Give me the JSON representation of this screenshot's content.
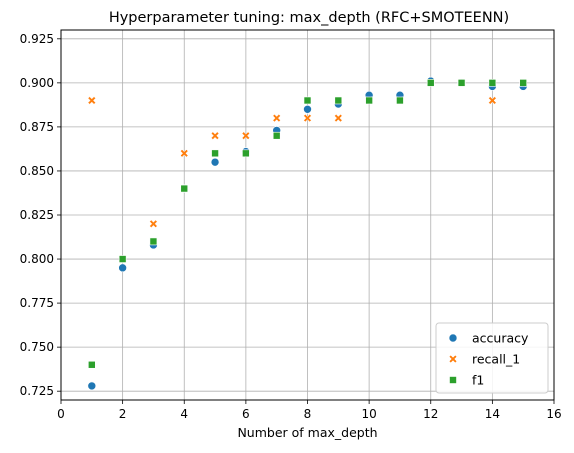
{
  "chart_data": {
    "type": "scatter",
    "title": "Hyperparameter tuning: max_depth (RFC+SMOTEENN)",
    "xlabel": "Number of max_depth",
    "ylabel": "",
    "xlim": [
      0,
      16
    ],
    "ylim": [
      0.72,
      0.93
    ],
    "x_ticks": [
      0,
      2,
      4,
      6,
      8,
      10,
      12,
      14,
      16
    ],
    "x_tick_labels": [
      "0",
      "2",
      "4",
      "6",
      "8",
      "10",
      "12",
      "14",
      "16"
    ],
    "y_ticks": [
      0.725,
      0.75,
      0.775,
      0.8,
      0.825,
      0.85,
      0.875,
      0.9,
      0.925
    ],
    "y_tick_labels": [
      "0.725",
      "0.750",
      "0.775",
      "0.800",
      "0.825",
      "0.850",
      "0.875",
      "0.900",
      "0.925"
    ],
    "grid": true,
    "legend_position": "lower-right",
    "x": [
      1,
      2,
      3,
      4,
      5,
      6,
      7,
      8,
      9,
      10,
      11,
      12,
      13,
      14,
      15
    ],
    "series": [
      {
        "name": "accuracy",
        "marker": "circle",
        "color": "#1f77b4",
        "values": [
          0.728,
          0.795,
          0.808,
          0.84,
          0.855,
          0.861,
          0.873,
          0.885,
          0.888,
          0.893,
          0.893,
          0.901,
          0.9,
          0.898,
          0.898
        ]
      },
      {
        "name": "recall_1",
        "marker": "x",
        "color": "#ff7f0e",
        "values": [
          0.89,
          0.8,
          0.82,
          0.86,
          0.87,
          0.87,
          0.88,
          0.88,
          0.88,
          0.89,
          0.89,
          0.9,
          0.9,
          0.89,
          0.9
        ]
      },
      {
        "name": "f1",
        "marker": "square",
        "color": "#2ca02c",
        "values": [
          0.74,
          0.8,
          0.81,
          0.84,
          0.86,
          0.86,
          0.87,
          0.89,
          0.89,
          0.89,
          0.89,
          0.9,
          0.9,
          0.9,
          0.9
        ]
      }
    ]
  }
}
